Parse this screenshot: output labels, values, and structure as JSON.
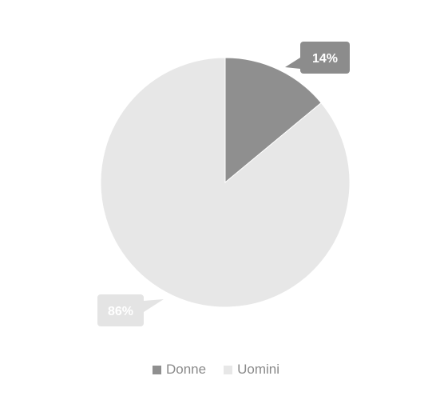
{
  "chart_data": {
    "type": "pie",
    "title": "",
    "categories": [
      "Donne",
      "Uomini"
    ],
    "values": [
      14,
      86
    ],
    "labels": [
      "14%",
      "86%"
    ],
    "colors": [
      "#8f8f8f",
      "#e7e7e7"
    ],
    "label_box_colors": [
      "#8c8c8c",
      "#e4e4e4"
    ],
    "label_text_colors": [
      "#ffffff",
      "#ffffff"
    ],
    "legend_position": "bottom",
    "start_angle": "12 o'clock",
    "direction": "clockwise"
  },
  "legend": {
    "items": [
      {
        "label": "Donne",
        "color": "#8f8f8f"
      },
      {
        "label": "Uomini",
        "color": "#e7e7e7"
      }
    ]
  }
}
